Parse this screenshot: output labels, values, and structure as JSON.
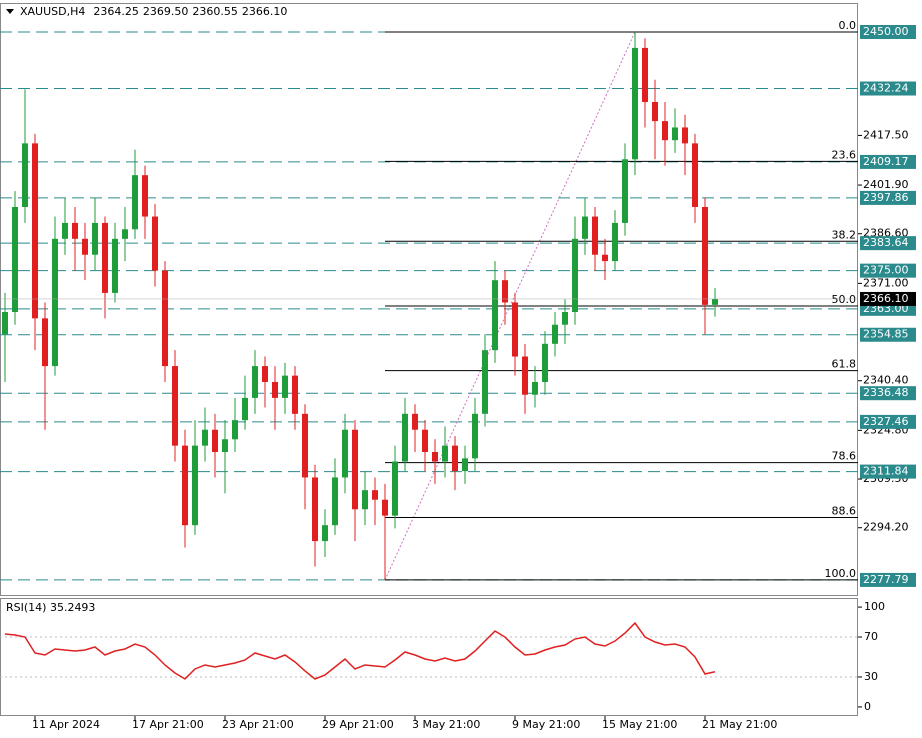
{
  "header": {
    "symbol": "XAUUSD,H4",
    "ohlc": [
      "2364.25",
      "2369.50",
      "2360.55",
      "2366.10"
    ]
  },
  "chart_data": [
    {
      "type": "candlestick",
      "categories": [
        null,
        null,
        null,
        "11 Apr 2024",
        null,
        null,
        null,
        null,
        null,
        null,
        null,
        null,
        null,
        "17 Apr 21:00",
        null,
        null,
        null,
        null,
        null,
        null,
        null,
        null,
        "23 Apr 21:00",
        null,
        null,
        null,
        null,
        null,
        null,
        null,
        null,
        null,
        "29 Apr 21:00",
        null,
        null,
        null,
        null,
        null,
        null,
        null,
        null,
        "3 May 21:00",
        null,
        null,
        null,
        null,
        null,
        null,
        null,
        null,
        null,
        "9 May 21:00",
        null,
        null,
        null,
        null,
        null,
        null,
        null,
        null,
        "15 May 21:00",
        null,
        null,
        null,
        null,
        null,
        null,
        null,
        null,
        null,
        "21 May 21:00",
        null
      ],
      "up_color": "#1f9d3a",
      "down_color": "#e02020",
      "candles": [
        [
          2355,
          2368,
          2340,
          2362
        ],
        [
          2362,
          2400,
          2358,
          2395
        ],
        [
          2395,
          2432,
          2390,
          2415
        ],
        [
          2415,
          2418,
          2350,
          2360
        ],
        [
          2360,
          2365,
          2325,
          2345
        ],
        [
          2345,
          2392,
          2342,
          2385
        ],
        [
          2385,
          2398,
          2380,
          2390
        ],
        [
          2390,
          2395,
          2375,
          2385
        ],
        [
          2385,
          2390,
          2372,
          2380
        ],
        [
          2380,
          2398,
          2375,
          2390
        ],
        [
          2390,
          2392,
          2360,
          2368
        ],
        [
          2368,
          2390,
          2365,
          2385
        ],
        [
          2385,
          2395,
          2378,
          2388
        ],
        [
          2388,
          2413,
          2385,
          2405
        ],
        [
          2405,
          2408,
          2385,
          2392
        ],
        [
          2392,
          2396,
          2370,
          2375
        ],
        [
          2375,
          2378,
          2340,
          2345
        ],
        [
          2345,
          2350,
          2315,
          2320
        ],
        [
          2320,
          2325,
          2288,
          2295
        ],
        [
          2295,
          2328,
          2292,
          2320
        ],
        [
          2320,
          2332,
          2315,
          2325
        ],
        [
          2325,
          2330,
          2310,
          2318
        ],
        [
          2318,
          2328,
          2305,
          2322
        ],
        [
          2322,
          2335,
          2318,
          2328
        ],
        [
          2328,
          2342,
          2325,
          2335
        ],
        [
          2335,
          2350,
          2330,
          2345
        ],
        [
          2345,
          2348,
          2332,
          2340
        ],
        [
          2340,
          2345,
          2325,
          2335
        ],
        [
          2335,
          2346,
          2330,
          2342
        ],
        [
          2342,
          2345,
          2325,
          2330
        ],
        [
          2330,
          2333,
          2300,
          2310
        ],
        [
          2310,
          2314,
          2282,
          2290
        ],
        [
          2290,
          2300,
          2285,
          2295
        ],
        [
          2295,
          2316,
          2292,
          2310
        ],
        [
          2310,
          2330,
          2305,
          2325
        ],
        [
          2325,
          2328,
          2290,
          2300
        ],
        [
          2300,
          2312,
          2295,
          2306
        ],
        [
          2306,
          2310,
          2295,
          2303
        ],
        [
          2303,
          2308,
          2277.79,
          2298
        ],
        [
          2298,
          2320,
          2294,
          2315
        ],
        [
          2315,
          2335,
          2312,
          2330
        ],
        [
          2330,
          2333,
          2318,
          2325
        ],
        [
          2325,
          2328,
          2312,
          2318
        ],
        [
          2318,
          2322,
          2308,
          2315
        ],
        [
          2315,
          2326,
          2310,
          2320
        ],
        [
          2320,
          2323,
          2306,
          2312
        ],
        [
          2312,
          2320,
          2308,
          2316
        ],
        [
          2316,
          2335,
          2312,
          2330
        ],
        [
          2330,
          2355,
          2326,
          2350
        ],
        [
          2350,
          2378,
          2346,
          2372
        ],
        [
          2372,
          2375,
          2358,
          2365
        ],
        [
          2365,
          2368,
          2342,
          2348
        ],
        [
          2348,
          2352,
          2330,
          2336
        ],
        [
          2336,
          2345,
          2332,
          2340
        ],
        [
          2340,
          2356,
          2336,
          2352
        ],
        [
          2352,
          2362,
          2348,
          2358
        ],
        [
          2358,
          2366,
          2352,
          2362
        ],
        [
          2362,
          2392,
          2358,
          2385
        ],
        [
          2385,
          2398,
          2380,
          2392
        ],
        [
          2392,
          2395,
          2375,
          2380
        ],
        [
          2380,
          2385,
          2372,
          2378
        ],
        [
          2378,
          2394,
          2375,
          2390
        ],
        [
          2390,
          2415,
          2386,
          2410
        ],
        [
          2410,
          2450,
          2405,
          2445
        ],
        [
          2445,
          2448,
          2420,
          2428
        ],
        [
          2428,
          2435,
          2410,
          2422
        ],
        [
          2422,
          2428,
          2408,
          2416
        ],
        [
          2416,
          2426,
          2412,
          2420
        ],
        [
          2420,
          2424,
          2405,
          2415
        ],
        [
          2415,
          2418,
          2390,
          2395
        ],
        [
          2395,
          2398,
          2355,
          2364.25
        ],
        [
          2364.25,
          2369.5,
          2360.55,
          2366.1
        ]
      ],
      "ylim": [
        2272.74,
        2460.06
      ],
      "yticks": [
        {
          "value": 2417.5,
          "label": "2417.50"
        },
        {
          "value": 2401.9,
          "label": "2401.90"
        },
        {
          "value": 2386.6,
          "label": "2386.60"
        },
        {
          "value": 2371,
          "label": "2371.00"
        },
        {
          "value": 2340.4,
          "label": "2340.40"
        },
        {
          "value": 2324.8,
          "label": "2324.80"
        },
        {
          "value": 2309.5,
          "label": "2309.50"
        },
        {
          "value": 2294.2,
          "label": "2294.20"
        }
      ],
      "levels": [
        {
          "value": 2450,
          "label": "2450.00"
        },
        {
          "value": 2432.24,
          "label": "2432.24"
        },
        {
          "value": 2409.17,
          "label": "2409.17"
        },
        {
          "value": 2397.86,
          "label": "2397.86"
        },
        {
          "value": 2383.64,
          "label": "2383.64"
        },
        {
          "value": 2375,
          "label": "2375.00"
        },
        {
          "value": 2363,
          "label": "2363.00"
        },
        {
          "value": 2354.85,
          "label": "2354.85"
        },
        {
          "value": 2336.48,
          "label": "2336.48"
        },
        {
          "value": 2327.46,
          "label": "2327.46"
        },
        {
          "value": 2311.84,
          "label": "2311.84"
        },
        {
          "value": 2277.79,
          "label": "2277.79"
        }
      ],
      "level_color": "#2a8a8c",
      "current_price": {
        "value": 2366.1,
        "label": "2366.10"
      },
      "fibonacci": [
        {
          "value": 2450,
          "label": "0.0"
        },
        {
          "value": 2409.36,
          "label": "23.6"
        },
        {
          "value": 2384.22,
          "label": "38.2"
        },
        {
          "value": 2363.9,
          "label": "50.0"
        },
        {
          "value": 2343.57,
          "label": "61.8"
        },
        {
          "value": 2314.65,
          "label": "78.6"
        },
        {
          "value": 2297.43,
          "label": "88.6"
        },
        {
          "value": 2277.79,
          "label": "100.0"
        }
      ]
    },
    {
      "type": "line",
      "title": "RSI(14) 35.2493",
      "color": "#e02020",
      "values": [
        73,
        72,
        70,
        54,
        52,
        58,
        57,
        56,
        57,
        60,
        52,
        56,
        58,
        63,
        60,
        52,
        42,
        34,
        28,
        38,
        42,
        40,
        42,
        44,
        47,
        54,
        51,
        48,
        52,
        45,
        36,
        28,
        32,
        40,
        48,
        38,
        42,
        41,
        40,
        47,
        55,
        52,
        48,
        46,
        49,
        46,
        48,
        56,
        66,
        76,
        70,
        60,
        52,
        53,
        57,
        60,
        62,
        68,
        70,
        63,
        61,
        66,
        74,
        84,
        70,
        65,
        62,
        63,
        60,
        50,
        33,
        35.2493
      ],
      "ylim": [
        -9.1,
        109.1
      ],
      "yticks": [
        0,
        30,
        70,
        100
      ],
      "levels": [
        30,
        70
      ]
    }
  ]
}
